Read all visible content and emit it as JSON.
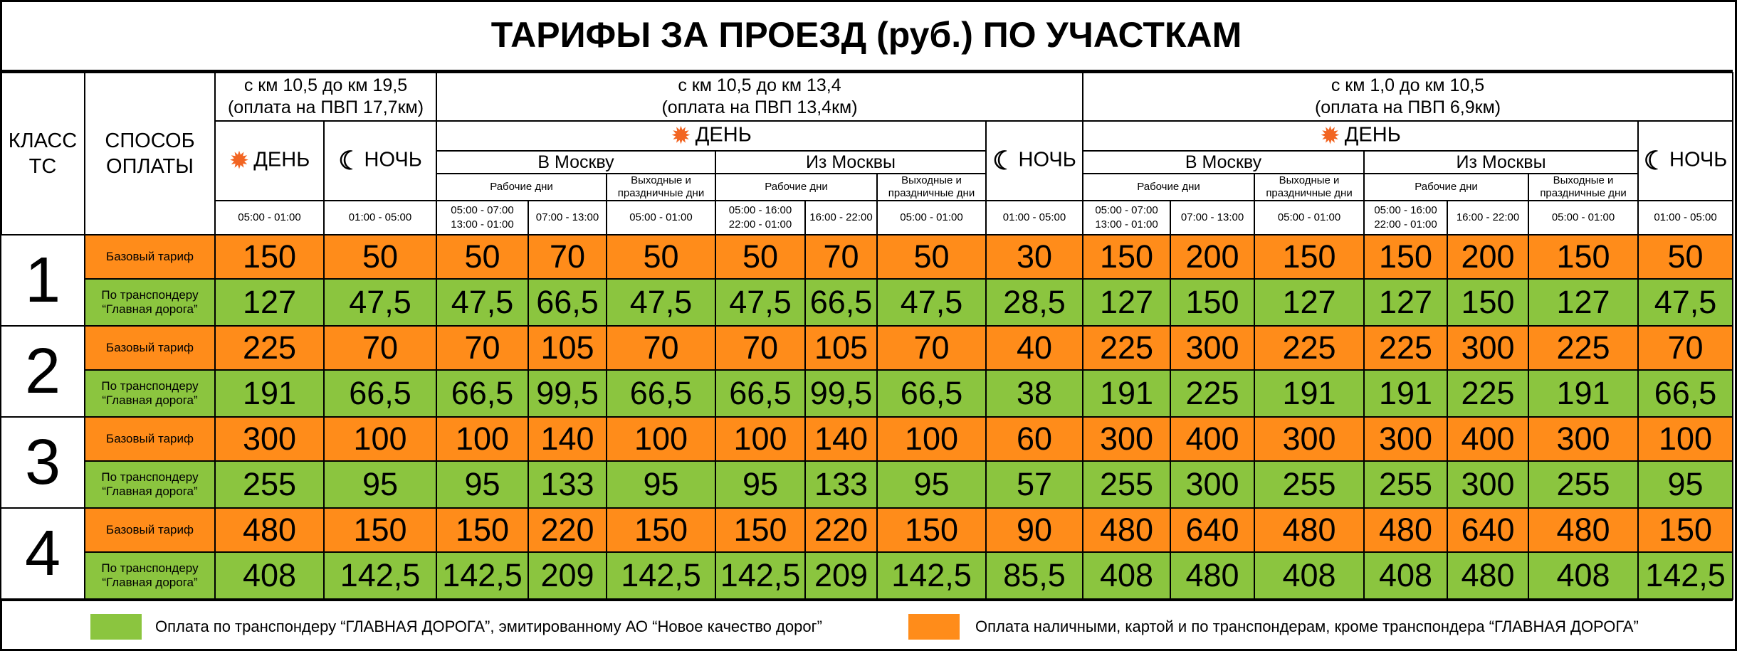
{
  "title": "ТАРИФЫ ЗА ПРОЕЗД (руб.) ПО УЧАСТКАМ",
  "headers": {
    "class": [
      "КЛАСС",
      "ТС"
    ],
    "method": [
      "СПОСОБ",
      "ОПЛАТЫ"
    ],
    "section1": [
      "с км 10,5 до км 19,5",
      "(оплата на ПВП 17,7км)"
    ],
    "section2": [
      "с км 10,5 до км 13,4",
      "(оплата на ПВП 13,4км)"
    ],
    "section3": [
      "с км 1,0 до км 10,5",
      "(оплата на ПВП 6,9км)"
    ],
    "day": "ДЕНЬ",
    "night": "НОЧЬ",
    "to_moscow": "В Москву",
    "from_moscow": "Из Москвы",
    "workdays": "Рабочие дни",
    "weekends": [
      "Выходные и",
      "праздничные дни"
    ],
    "times": {
      "s1_day": "05:00 - 01:00",
      "s1_night": "01:00 - 05:00",
      "to_a": [
        "05:00 - 07:00",
        "13:00 - 01:00"
      ],
      "to_b": "07:00 - 13:00",
      "to_c": "05:00 - 01:00",
      "from_a": [
        "05:00 - 16:00",
        "22:00 - 01:00"
      ],
      "from_b": "16:00 - 22:00",
      "from_c": "05:00 - 01:00",
      "night": "01:00 - 05:00"
    }
  },
  "methods": {
    "base": "Базовый тариф",
    "transponder": [
      "По транспондеру",
      "“Главная дорога”"
    ]
  },
  "rows": [
    {
      "class": "1",
      "base": [
        "150",
        "50",
        "50",
        "70",
        "50",
        "50",
        "70",
        "50",
        "30",
        "150",
        "200",
        "150",
        "150",
        "200",
        "150",
        "50"
      ],
      "transponder": [
        "127",
        "47,5",
        "47,5",
        "66,5",
        "47,5",
        "47,5",
        "66,5",
        "47,5",
        "28,5",
        "127",
        "150",
        "127",
        "127",
        "150",
        "127",
        "47,5"
      ]
    },
    {
      "class": "2",
      "base": [
        "225",
        "70",
        "70",
        "105",
        "70",
        "70",
        "105",
        "70",
        "40",
        "225",
        "300",
        "225",
        "225",
        "300",
        "225",
        "70"
      ],
      "transponder": [
        "191",
        "66,5",
        "66,5",
        "99,5",
        "66,5",
        "66,5",
        "99,5",
        "66,5",
        "38",
        "191",
        "225",
        "191",
        "191",
        "225",
        "191",
        "66,5"
      ]
    },
    {
      "class": "3",
      "base": [
        "300",
        "100",
        "100",
        "140",
        "100",
        "100",
        "140",
        "100",
        "60",
        "300",
        "400",
        "300",
        "300",
        "400",
        "300",
        "100"
      ],
      "transponder": [
        "255",
        "95",
        "95",
        "133",
        "95",
        "95",
        "133",
        "95",
        "57",
        "255",
        "300",
        "255",
        "255",
        "300",
        "255",
        "95"
      ]
    },
    {
      "class": "4",
      "base": [
        "480",
        "150",
        "150",
        "220",
        "150",
        "150",
        "220",
        "150",
        "90",
        "480",
        "640",
        "480",
        "480",
        "640",
        "480",
        "150"
      ],
      "transponder": [
        "408",
        "142,5",
        "142,5",
        "209",
        "142,5",
        "142,5",
        "209",
        "142,5",
        "85,5",
        "408",
        "480",
        "408",
        "408",
        "480",
        "408",
        "142,5"
      ]
    }
  ],
  "legend": {
    "green_label": "Оплата по транспондеру “ГЛАВНАЯ ДОРОГА”, эмитированному АО “Новое качество дорог”",
    "orange_label": "Оплата наличными, картой и по транспондерам, кроме транспондера “ГЛАВНАЯ ДОРОГА”"
  },
  "colors": {
    "orange": "#FF8C1A",
    "green": "#8BC53F",
    "sun": "#F26522"
  }
}
